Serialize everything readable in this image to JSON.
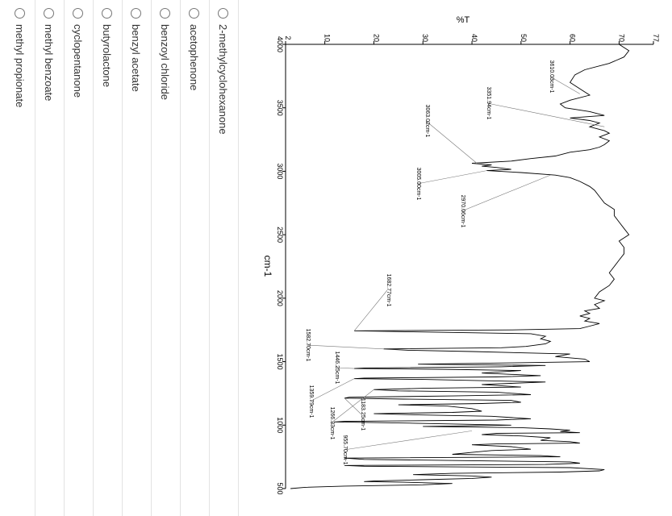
{
  "options": [
    {
      "label": "2-methylcyclohexanone",
      "selected": false
    },
    {
      "label": "acetophenone",
      "selected": false
    },
    {
      "label": "benzoyl chloride",
      "selected": false
    },
    {
      "label": "benzyl acetate",
      "selected": false
    },
    {
      "label": "butyrolactone",
      "selected": false
    },
    {
      "label": "cyclopentanone",
      "selected": false
    },
    {
      "label": "methyl benzoate",
      "selected": false
    },
    {
      "label": "methyl propionate",
      "selected": false
    }
  ],
  "chart_data": {
    "type": "line",
    "title": "",
    "xlabel": "cm-1",
    "ylabel": "%T",
    "xlim": [
      4000,
      500
    ],
    "ylim": [
      2,
      77
    ],
    "x_reversed": true,
    "x_ticks": [
      "4000",
      "3500",
      "3000",
      "2500",
      "2000",
      "1500",
      "1000",
      "500"
    ],
    "y_ticks": [
      "2",
      "10",
      "20",
      "30",
      "40",
      "50",
      "60",
      "70",
      "77"
    ],
    "series": [
      {
        "points": [
          [
            4000,
            70
          ],
          [
            3950,
            72
          ],
          [
            3900,
            71
          ],
          [
            3850,
            68
          ],
          [
            3800,
            63
          ],
          [
            3760,
            61
          ],
          [
            3700,
            60
          ],
          [
            3650,
            62
          ],
          [
            3600,
            64
          ],
          [
            3560,
            60
          ],
          [
            3530,
            58
          ],
          [
            3500,
            59
          ],
          [
            3470,
            64
          ],
          [
            3440,
            67
          ],
          [
            3420,
            60
          ],
          [
            3400,
            64
          ],
          [
            3380,
            66
          ],
          [
            3350,
            64
          ],
          [
            3320,
            67
          ],
          [
            3300,
            68
          ],
          [
            3270,
            66
          ],
          [
            3240,
            68
          ],
          [
            3210,
            67
          ],
          [
            3190,
            66
          ],
          [
            3170,
            64
          ],
          [
            3150,
            60
          ],
          [
            3120,
            57
          ],
          [
            3100,
            52
          ],
          [
            3080,
            48
          ],
          [
            3063,
            40
          ],
          [
            3050,
            44
          ],
          [
            3040,
            42
          ],
          [
            3030,
            45
          ],
          [
            3015,
            48
          ],
          [
            3005,
            43
          ],
          [
            2990,
            50
          ],
          [
            2970,
            57
          ],
          [
            2950,
            60
          ],
          [
            2920,
            62
          ],
          [
            2880,
            64
          ],
          [
            2850,
            65
          ],
          [
            2800,
            66
          ],
          [
            2750,
            67
          ],
          [
            2700,
            69
          ],
          [
            2650,
            69
          ],
          [
            2600,
            70
          ],
          [
            2550,
            71
          ],
          [
            2500,
            72
          ],
          [
            2450,
            70
          ],
          [
            2400,
            71
          ],
          [
            2350,
            71
          ],
          [
            2300,
            70
          ],
          [
            2250,
            69
          ],
          [
            2200,
            68
          ],
          [
            2150,
            69
          ],
          [
            2100,
            68
          ],
          [
            2050,
            66
          ],
          [
            2000,
            65
          ],
          [
            1980,
            67
          ],
          [
            1950,
            65
          ],
          [
            1920,
            66
          ],
          [
            1900,
            63
          ],
          [
            1880,
            64
          ],
          [
            1860,
            62
          ],
          [
            1840,
            64
          ],
          [
            1820,
            63
          ],
          [
            1800,
            66
          ],
          [
            1780,
            64
          ],
          [
            1760,
            62
          ],
          [
            1750,
            48
          ],
          [
            1743,
            16
          ],
          [
            1735,
            28
          ],
          [
            1720,
            52
          ],
          [
            1700,
            55
          ],
          [
            1680,
            54
          ],
          [
            1660,
            56
          ],
          [
            1640,
            55
          ],
          [
            1620,
            51
          ],
          [
            1610,
            46
          ],
          [
            1600,
            22
          ],
          [
            1590,
            27
          ],
          [
            1580,
            40
          ],
          [
            1560,
            60
          ],
          [
            1540,
            57
          ],
          [
            1520,
            63
          ],
          [
            1500,
            64
          ],
          [
            1490,
            48
          ],
          [
            1480,
            29
          ],
          [
            1470,
            55
          ],
          [
            1460,
            46
          ],
          [
            1450,
            18
          ],
          [
            1446,
            16
          ],
          [
            1440,
            34
          ],
          [
            1430,
            50
          ],
          [
            1410,
            42
          ],
          [
            1390,
            54
          ],
          [
            1380,
            45
          ],
          [
            1370,
            18
          ],
          [
            1366,
            16
          ],
          [
            1360,
            30
          ],
          [
            1340,
            55
          ],
          [
            1320,
            42
          ],
          [
            1300,
            50
          ],
          [
            1290,
            30
          ],
          [
            1280,
            20
          ],
          [
            1270,
            25
          ],
          [
            1260,
            45
          ],
          [
            1240,
            52
          ],
          [
            1230,
            36
          ],
          [
            1220,
            15
          ],
          [
            1213,
            14
          ],
          [
            1205,
            26
          ],
          [
            1195,
            48
          ],
          [
            1180,
            50
          ],
          [
            1170,
            42
          ],
          [
            1160,
            25
          ],
          [
            1150,
            35
          ],
          [
            1130,
            40
          ],
          [
            1110,
            42
          ],
          [
            1100,
            36
          ],
          [
            1090,
            20
          ],
          [
            1080,
            30
          ],
          [
            1070,
            44
          ],
          [
            1050,
            52
          ],
          [
            1040,
            45
          ],
          [
            1030,
            14
          ],
          [
            1025,
            12
          ],
          [
            1015,
            28
          ],
          [
            1000,
            48
          ],
          [
            990,
            30
          ],
          [
            980,
            50
          ],
          [
            970,
            56
          ],
          [
            960,
            60
          ],
          [
            950,
            58
          ],
          [
            940,
            62
          ],
          [
            935,
            45
          ],
          [
            925,
            42
          ],
          [
            915,
            50
          ],
          [
            900,
            56
          ],
          [
            880,
            54
          ],
          [
            870,
            60
          ],
          [
            858,
            62
          ],
          [
            852,
            45
          ],
          [
            845,
            40
          ],
          [
            830,
            48
          ],
          [
            810,
            52
          ],
          [
            800,
            44
          ],
          [
            785,
            40
          ],
          [
            770,
            36
          ],
          [
            760,
            54
          ],
          [
            750,
            58
          ],
          [
            740,
            14
          ],
          [
            730,
            18
          ],
          [
            720,
            40
          ],
          [
            710,
            60
          ],
          [
            700,
            62
          ],
          [
            690,
            55
          ],
          [
            682,
            14
          ],
          [
            676,
            18
          ],
          [
            665,
            60
          ],
          [
            650,
            67
          ],
          [
            640,
            66
          ],
          [
            630,
            58
          ],
          [
            620,
            36
          ],
          [
            610,
            28
          ],
          [
            600,
            40
          ],
          [
            590,
            44
          ],
          [
            580,
            40
          ],
          [
            570,
            30
          ],
          [
            560,
            20
          ],
          [
            555,
            18
          ],
          [
            550,
            26
          ],
          [
            540,
            36
          ],
          [
            530,
            30
          ],
          [
            520,
            14
          ],
          [
            510,
            6
          ],
          [
            500,
            3
          ]
        ]
      }
    ],
    "annotations": [
      {
        "label": "3610.03cm-1",
        "x": 3610,
        "y": 62
      },
      {
        "label": "3351.94cm-1",
        "x": 3351,
        "y": 67
      },
      {
        "label": "3063.02cm-1",
        "x": 3063,
        "y": 41
      },
      {
        "label": "3005.00cm-1",
        "x": 3005,
        "y": 43
      },
      {
        "label": "2970.06cm-1",
        "x": 2970,
        "y": 56
      },
      {
        "label": "1682.77cm-1",
        "x": 1743,
        "y": 16
      },
      {
        "label": "1582.70cm-1",
        "x": 1600,
        "y": 22
      },
      {
        "label": "1446.25cm-1",
        "x": 1446,
        "y": 16
      },
      {
        "label": "1359.79cm-1",
        "x": 1366,
        "y": 16
      },
      {
        "label": "1183.25cm-1",
        "x": 1213,
        "y": 14
      },
      {
        "label": "1266.33cm-1",
        "x": 1280,
        "y": 20
      },
      {
        "label": "955.70cm-1",
        "x": 955,
        "y": 40
      }
    ]
  }
}
